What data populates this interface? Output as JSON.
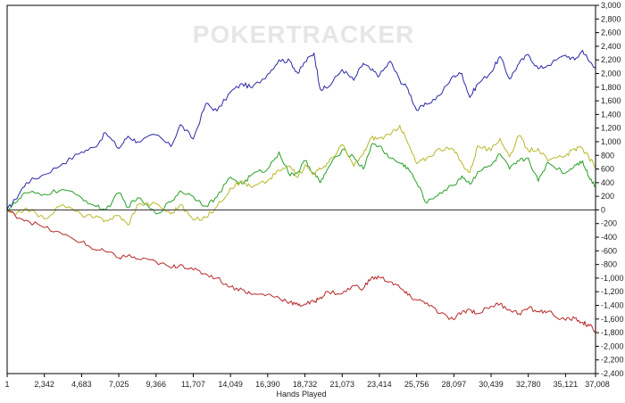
{
  "chart_data": {
    "type": "line",
    "watermark": "POKERTRACKER",
    "xlabel": "Hands Played",
    "ylabel": "",
    "x_ticks": [
      1,
      2342,
      4683,
      7025,
      9366,
      11707,
      14049,
      16390,
      18732,
      21073,
      23414,
      25756,
      28097,
      30439,
      32780,
      35121,
      37008
    ],
    "x_tick_labels": [
      "1",
      "2,342",
      "4,683",
      "7,025",
      "9,366",
      "11,707",
      "14,049",
      "16,390",
      "18,732",
      "21,073",
      "23,414",
      "25,756",
      "28,097",
      "30,439",
      "32,780",
      "35,121",
      "37,008"
    ],
    "xlim": [
      1,
      37008
    ],
    "ylim": [
      -2400,
      3000
    ],
    "y_ticks": [
      -2400,
      -2200,
      -2000,
      -1800,
      -1600,
      -1400,
      -1200,
      -1000,
      -800,
      -600,
      -400,
      -200,
      0,
      200,
      400,
      600,
      800,
      1000,
      1200,
      1400,
      1600,
      1800,
      2000,
      2200,
      2400,
      2600,
      2800,
      3000
    ],
    "y_tick_labels": [
      "-2,400",
      "-2,200",
      "-2,000",
      "-1,800",
      "-1,600",
      "-1,400",
      "-1,200",
      "-1,000",
      "-800",
      "-600",
      "-400",
      "-200",
      "0",
      "200",
      "400",
      "600",
      "800",
      "1,000",
      "1,200",
      "1,400",
      "1,600",
      "1,800",
      "2,000",
      "2,200",
      "2,400",
      "2,600",
      "2,800",
      "3,000"
    ],
    "y_axis_side": "right",
    "grid": false,
    "legend": "none",
    "series": [
      {
        "color": "#2a2aa8",
        "x": [
          1,
          500,
          1200,
          2342,
          3500,
          4683,
          5500,
          6200,
          7025,
          7600,
          8200,
          9366,
          10300,
          10900,
          11707,
          12500,
          13200,
          14049,
          14800,
          15400,
          16390,
          17100,
          17800,
          18300,
          18732,
          19300,
          19700,
          20200,
          21073,
          21800,
          22400,
          22900,
          23414,
          24100,
          24700,
          25200,
          25756,
          26400,
          27200,
          28097,
          28600,
          29100,
          29600,
          30439,
          31000,
          31600,
          32200,
          32780,
          33400,
          34000,
          35121,
          35700,
          36200,
          36600,
          37008
        ],
        "y": [
          0,
          150,
          400,
          520,
          680,
          850,
          920,
          1130,
          900,
          1080,
          1000,
          1100,
          930,
          1250,
          1040,
          1560,
          1450,
          1730,
          1850,
          1790,
          1990,
          2200,
          2180,
          2000,
          2170,
          2300,
          1770,
          1800,
          2060,
          1900,
          2150,
          2050,
          1970,
          2180,
          1900,
          1780,
          1460,
          1550,
          1680,
          1970,
          2000,
          1650,
          1850,
          2020,
          2250,
          1920,
          2150,
          2280,
          2070,
          2120,
          2270,
          2200,
          2340,
          2180,
          2100
        ]
      },
      {
        "color": "#28a028",
        "x": [
          1,
          500,
          1200,
          2342,
          3500,
          4683,
          5500,
          6200,
          7025,
          7600,
          8200,
          9366,
          10300,
          10900,
          11707,
          12500,
          13200,
          14049,
          14800,
          15400,
          16390,
          17100,
          17800,
          18300,
          18732,
          19300,
          19700,
          20200,
          21073,
          21800,
          22400,
          22900,
          23414,
          24100,
          24700,
          25200,
          25756,
          26400,
          27200,
          28097,
          28600,
          29100,
          29600,
          30439,
          31000,
          31600,
          32200,
          32780,
          33400,
          34000,
          35121,
          35700,
          36200,
          36600,
          37008
        ],
        "y": [
          0,
          100,
          250,
          230,
          300,
          180,
          60,
          0,
          250,
          40,
          180,
          -60,
          120,
          280,
          200,
          60,
          190,
          480,
          380,
          520,
          600,
          850,
          500,
          560,
          720,
          540,
          400,
          620,
          880,
          780,
          600,
          950,
          940,
          760,
          690,
          620,
          400,
          100,
          250,
          360,
          500,
          380,
          560,
          650,
          820,
          600,
          720,
          760,
          420,
          700,
          540,
          660,
          720,
          480,
          350
        ]
      },
      {
        "color": "#b8b82c",
        "x": [
          1,
          500,
          1200,
          2342,
          3500,
          4683,
          5500,
          6200,
          7025,
          7600,
          8200,
          9366,
          10300,
          10900,
          11707,
          12500,
          13200,
          14049,
          14800,
          15400,
          16390,
          17100,
          17800,
          18300,
          18732,
          19300,
          19700,
          20200,
          21073,
          21800,
          22400,
          22900,
          23414,
          24100,
          24700,
          25200,
          25756,
          26400,
          27200,
          28097,
          28600,
          29100,
          29600,
          30439,
          31000,
          31600,
          32200,
          32780,
          33400,
          34000,
          35121,
          35700,
          36200,
          36600,
          37008
        ],
        "y": [
          0,
          -80,
          30,
          -130,
          80,
          -70,
          -110,
          -150,
          -80,
          -220,
          80,
          90,
          -60,
          80,
          -150,
          -110,
          50,
          320,
          420,
          330,
          430,
          580,
          640,
          480,
          660,
          530,
          600,
          690,
          960,
          640,
          820,
          1060,
          1050,
          1100,
          1240,
          980,
          680,
          760,
          900,
          880,
          680,
          550,
          940,
          870,
          1050,
          780,
          1090,
          870,
          900,
          720,
          790,
          900,
          900,
          760,
          640
        ]
      },
      {
        "color": "#b82828",
        "x": [
          1,
          500,
          1200,
          2342,
          3500,
          4683,
          5500,
          6200,
          7025,
          7600,
          8200,
          9366,
          10300,
          10900,
          11707,
          12500,
          13200,
          14049,
          14800,
          15400,
          16390,
          17100,
          17800,
          18300,
          18732,
          19300,
          19700,
          20200,
          21073,
          21800,
          22400,
          22900,
          23414,
          24100,
          24700,
          25200,
          25756,
          26400,
          27200,
          28097,
          28600,
          29100,
          29600,
          30439,
          31000,
          31600,
          32200,
          32780,
          33400,
          34000,
          35121,
          35700,
          36200,
          36600,
          37008
        ],
        "y": [
          0,
          -80,
          -150,
          -260,
          -360,
          -470,
          -580,
          -610,
          -700,
          -670,
          -720,
          -760,
          -850,
          -800,
          -880,
          -940,
          -1000,
          -1130,
          -1170,
          -1240,
          -1240,
          -1290,
          -1350,
          -1400,
          -1380,
          -1350,
          -1280,
          -1200,
          -1230,
          -1110,
          -1150,
          -1000,
          -990,
          -1050,
          -1140,
          -1250,
          -1320,
          -1360,
          -1520,
          -1610,
          -1500,
          -1460,
          -1520,
          -1410,
          -1380,
          -1460,
          -1520,
          -1440,
          -1490,
          -1490,
          -1620,
          -1590,
          -1650,
          -1700,
          -1770
        ]
      }
    ]
  }
}
